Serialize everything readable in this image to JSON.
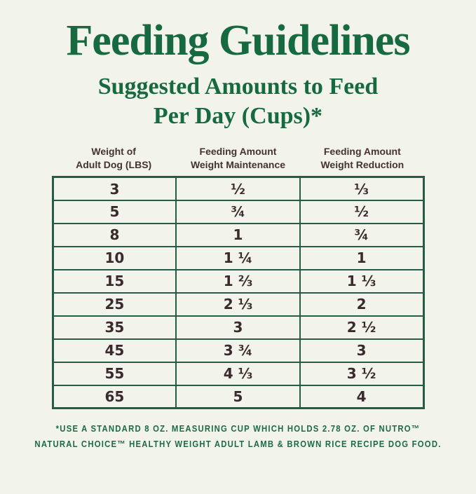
{
  "page": {
    "title": "Feeding Guidelines",
    "subtitle_line1": "Suggested Amounts to Feed",
    "subtitle_line2": "Per Day (Cups)*"
  },
  "table": {
    "columns": [
      {
        "line1": "Weight of",
        "line2": "Adult Dog (LBS)"
      },
      {
        "line1": "Feeding Amount",
        "line2": "Weight Maintenance"
      },
      {
        "line1": "Feeding Amount",
        "line2": "Weight Reduction"
      }
    ],
    "rows": [
      [
        "3",
        "½",
        "⅓"
      ],
      [
        "5",
        "¾",
        "½"
      ],
      [
        "8",
        "1",
        "¾"
      ],
      [
        "10",
        "1 ¼",
        "1"
      ],
      [
        "15",
        "1 ⅔",
        "1 ⅓"
      ],
      [
        "25",
        "2 ⅓",
        "2"
      ],
      [
        "35",
        "3",
        "2 ½"
      ],
      [
        "45",
        "3 ¾",
        "3"
      ],
      [
        "55",
        "4 ⅓",
        "3 ½"
      ],
      [
        "65",
        "5",
        "4"
      ]
    ]
  },
  "footnote": {
    "line1": "*USE A STANDARD 8 OZ. MEASURING CUP WHICH HOLDS 2.78 OZ. OF NUTRO™",
    "line2": "NATURAL CHOICE™ HEALTHY WEIGHT ADULT LAMB & BROWN RICE RECIPE DOG FOOD."
  },
  "colors": {
    "background": "#f2f4ec",
    "heading_green": "#17693f",
    "table_border_green": "#265b47",
    "cell_text": "#3a2a2e",
    "column_header_text": "#45312f",
    "footnote_green": "#1c6a43"
  },
  "chart_data": {
    "type": "table",
    "title": "Feeding Guidelines",
    "subtitle": "Suggested Amounts to Feed Per Day (Cups)*",
    "columns": [
      "Weight of Adult Dog (LBS)",
      "Feeding Amount Weight Maintenance",
      "Feeding Amount Weight Reduction"
    ],
    "rows": [
      [
        "3",
        "½",
        "⅓"
      ],
      [
        "5",
        "¾",
        "½"
      ],
      [
        "8",
        "1",
        "¾"
      ],
      [
        "10",
        "1 ¼",
        "1"
      ],
      [
        "15",
        "1 ⅔",
        "1 ⅓"
      ],
      [
        "25",
        "2 ⅓",
        "2"
      ],
      [
        "35",
        "3",
        "2 ½"
      ],
      [
        "45",
        "3 ¾",
        "3"
      ],
      [
        "55",
        "4 ⅓",
        "3 ½"
      ],
      [
        "65",
        "5",
        "4"
      ]
    ],
    "footnote": "*USE A STANDARD 8 OZ. MEASURING CUP WHICH HOLDS 2.78 OZ. OF NUTRO™ NATURAL CHOICE™ HEALTHY WEIGHT ADULT LAMB & BROWN RICE RECIPE DOG FOOD."
  }
}
